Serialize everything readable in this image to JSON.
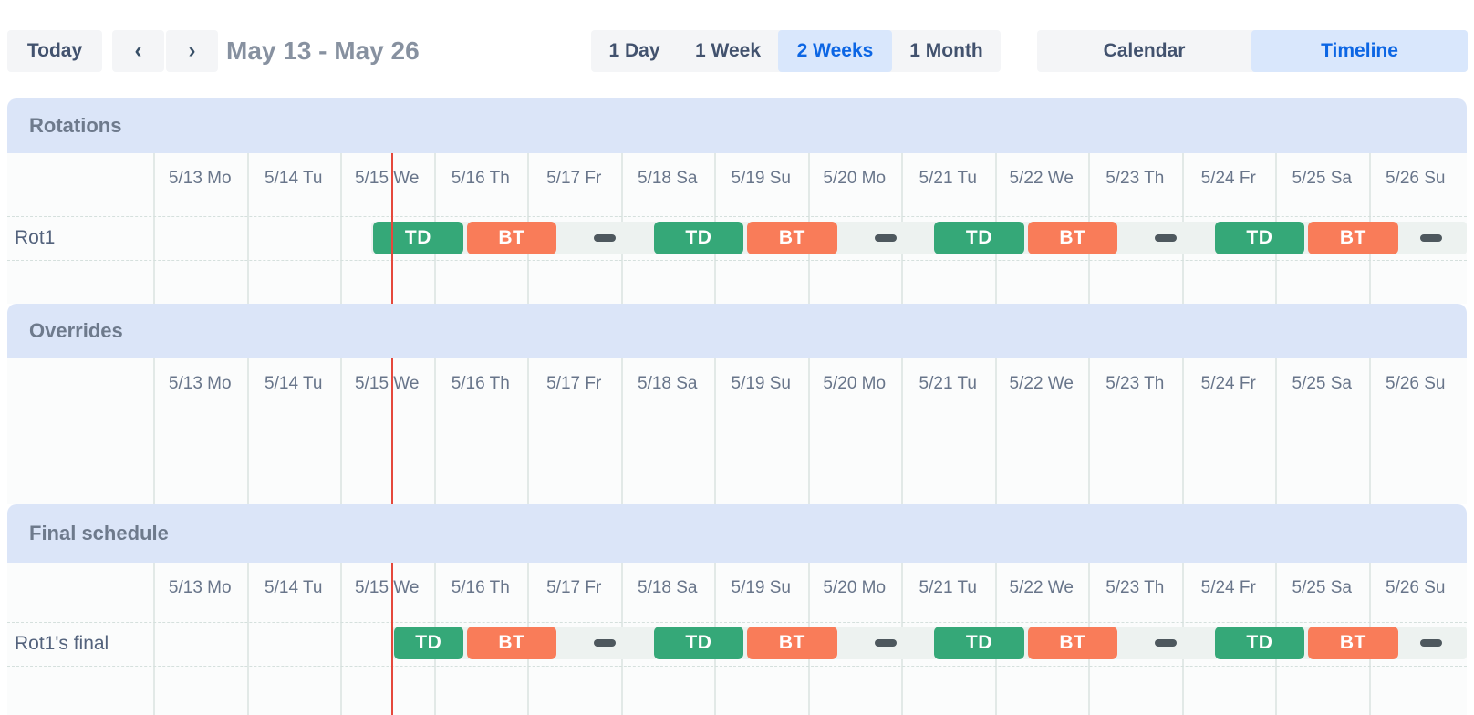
{
  "toolbar": {
    "today_label": "Today",
    "prev_icon": "‹",
    "next_icon": "›",
    "title": "May 13 - May 26",
    "view_buttons": [
      {
        "label": "1 Day",
        "active": false
      },
      {
        "label": "1 Week",
        "active": false
      },
      {
        "label": "2 Weeks",
        "active": true
      },
      {
        "label": "1 Month",
        "active": false
      }
    ],
    "mode_buttons": [
      {
        "label": "Calendar",
        "active": false
      },
      {
        "label": "Timeline",
        "active": true
      }
    ]
  },
  "colors": {
    "button_bg": "#f4f5f7",
    "button_text": "#42526e",
    "active_bg": "#d9e7fc",
    "active_text": "#0c66e4",
    "section_band": "#dbe5f8",
    "shift_green": "#35a878",
    "shift_orange": "#f97c59",
    "now_line_red": "#e5483c",
    "gap_dash": "#4e585e"
  },
  "timeline": {
    "days": [
      "5/13 Mo",
      "5/14 Tu",
      "5/15 We",
      "5/16 Th",
      "5/17 Fr",
      "5/18 Sa",
      "5/19 Su",
      "5/20 Mo",
      "5/21 Tu",
      "5/22 We",
      "5/23 Th",
      "5/24 Fr",
      "5/25 Sa",
      "5/26 Su"
    ],
    "now_day": 2.556
  },
  "sections": [
    {
      "title": "Rotations",
      "rows": [
        {
          "label": "Rot1",
          "lane_start_day": 2.333,
          "shifts": [
            {
              "assignee": "TD",
              "color": "green",
              "start_day": 2.333,
              "end_day": 3.333
            },
            {
              "assignee": "BT",
              "color": "orange",
              "start_day": 3.333,
              "end_day": 4.333
            },
            {
              "assignee": "TD",
              "color": "green",
              "start_day": 5.333,
              "end_day": 6.333
            },
            {
              "assignee": "BT",
              "color": "orange",
              "start_day": 6.333,
              "end_day": 7.333
            },
            {
              "assignee": "TD",
              "color": "green",
              "start_day": 8.333,
              "end_day": 9.333
            },
            {
              "assignee": "BT",
              "color": "orange",
              "start_day": 9.333,
              "end_day": 10.333
            },
            {
              "assignee": "TD",
              "color": "green",
              "start_day": 11.333,
              "end_day": 12.333
            },
            {
              "assignee": "BT",
              "color": "orange",
              "start_day": 12.333,
              "end_day": 13.333
            }
          ],
          "gap_dash_days": [
            4.833,
            7.833,
            10.833,
            13.67
          ]
        }
      ]
    },
    {
      "title": "Overrides",
      "rows": []
    },
    {
      "title": "Final schedule",
      "rows": [
        {
          "label": "Rot1's final",
          "lane_start_day": 2.556,
          "shifts": [
            {
              "assignee": "TD",
              "color": "green",
              "start_day": 2.556,
              "end_day": 3.333
            },
            {
              "assignee": "BT",
              "color": "orange",
              "start_day": 3.333,
              "end_day": 4.333
            },
            {
              "assignee": "TD",
              "color": "green",
              "start_day": 5.333,
              "end_day": 6.333
            },
            {
              "assignee": "BT",
              "color": "orange",
              "start_day": 6.333,
              "end_day": 7.333
            },
            {
              "assignee": "TD",
              "color": "green",
              "start_day": 8.333,
              "end_day": 9.333
            },
            {
              "assignee": "BT",
              "color": "orange",
              "start_day": 9.333,
              "end_day": 10.333
            },
            {
              "assignee": "TD",
              "color": "green",
              "start_day": 11.333,
              "end_day": 12.333
            },
            {
              "assignee": "BT",
              "color": "orange",
              "start_day": 12.333,
              "end_day": 13.333
            }
          ],
          "gap_dash_days": [
            4.833,
            7.833,
            10.833,
            13.67
          ]
        }
      ]
    }
  ]
}
